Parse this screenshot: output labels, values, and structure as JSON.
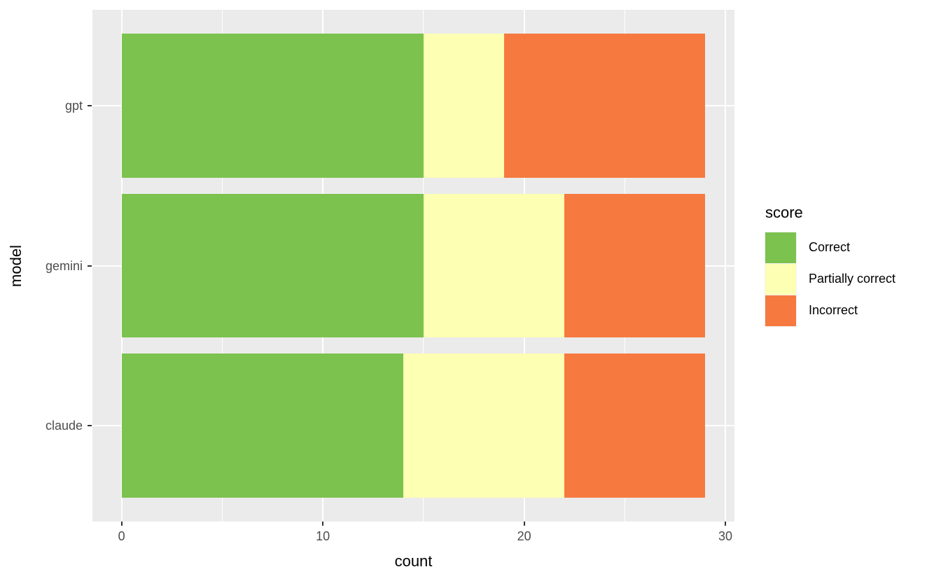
{
  "chart_data": {
    "type": "bar",
    "orientation": "horizontal",
    "stacked": true,
    "title": "",
    "xlabel": "count",
    "ylabel": "model",
    "categories_top_to_bottom": [
      "gpt",
      "gemini",
      "claude"
    ],
    "series": [
      {
        "name": "Correct",
        "color": "#7CC24E",
        "values": [
          15,
          15,
          14
        ]
      },
      {
        "name": "Partially correct",
        "color": "#FDFFB3",
        "values": [
          4,
          7,
          8
        ]
      },
      {
        "name": "Incorrect",
        "color": "#F6793F",
        "values": [
          10,
          7,
          7
        ]
      }
    ],
    "bar_totals": [
      29,
      29,
      29
    ],
    "x_tick_labels": [
      "0",
      "10",
      "20",
      "30"
    ],
    "x_tick_values": [
      0,
      10,
      20,
      30
    ],
    "x_minor_values": [
      5,
      15,
      25
    ],
    "xlim": [
      -1.45,
      30.45
    ],
    "legend": {
      "title": "score",
      "position": "right"
    },
    "style": {
      "panel_background": "#EBEBEB",
      "gridline_color": "#FFFFFF",
      "tick_color": "#333333",
      "axis_text_color": "#4D4D4D",
      "axis_title_color": "#000000",
      "figure_background": "#FFFFFF"
    }
  }
}
